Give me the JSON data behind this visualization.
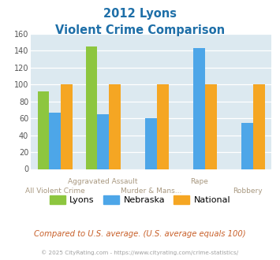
{
  "title_line1": "2012 Lyons",
  "title_line2": "Violent Crime Comparison",
  "categories": [
    "All Violent Crime",
    "Aggravated Assault",
    "Murder & Mans...",
    "Rape",
    "Robbery"
  ],
  "x_labels": [
    [
      "",
      "Aggravated Assault",
      "",
      "Rape",
      ""
    ],
    [
      "All Violent Crime",
      "",
      "Murder & Mans...",
      "",
      "Robbery"
    ]
  ],
  "series": {
    "Lyons": [
      92,
      145,
      0,
      0,
      0
    ],
    "Nebraska": [
      67,
      65,
      60,
      143,
      55
    ],
    "National": [
      100,
      100,
      100,
      100,
      100
    ]
  },
  "colors": {
    "Lyons": "#8dc63f",
    "Nebraska": "#4da6e8",
    "National": "#f5a623"
  },
  "ylim": [
    0,
    160
  ],
  "yticks": [
    0,
    20,
    40,
    60,
    80,
    100,
    120,
    140,
    160
  ],
  "plot_bg": "#dce9f0",
  "grid_color": "#ffffff",
  "title_color": "#1e6fa8",
  "xlabel_color": "#a89880",
  "footer_text": "Compared to U.S. average. (U.S. average equals 100)",
  "copyright_text": "© 2025 CityRating.com - https://www.cityrating.com/crime-statistics/",
  "footer_color": "#c8602a",
  "copyright_color": "#a0a0a0"
}
